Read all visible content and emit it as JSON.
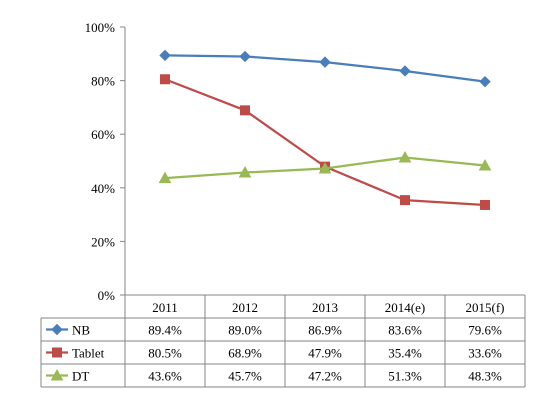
{
  "chart_data": {
    "type": "line",
    "categories": [
      "2011",
      "2012",
      "2013",
      "2014(e)",
      "2015(f)"
    ],
    "ylim": [
      0,
      100
    ],
    "yticks": [
      "0%",
      "20%",
      "40%",
      "60%",
      "80%",
      "100%"
    ],
    "grid": false,
    "legend_placement": "data-table-left",
    "series": [
      {
        "name": "NB",
        "color": "#4a7ebb",
        "marker": "diamond",
        "values": [
          89.4,
          89.0,
          86.9,
          83.6,
          79.6
        ],
        "labels": [
          "89.4%",
          "89.0%",
          "86.9%",
          "83.6%",
          "79.6%"
        ]
      },
      {
        "name": "Tablet",
        "color": "#be4b48",
        "marker": "square",
        "values": [
          80.5,
          68.9,
          47.9,
          35.4,
          33.6
        ],
        "labels": [
          "80.5%",
          "68.9%",
          "47.9%",
          "35.4%",
          "33.6%"
        ]
      },
      {
        "name": "DT",
        "color": "#98b954",
        "marker": "triangle",
        "values": [
          43.6,
          45.7,
          47.2,
          51.3,
          48.3
        ],
        "labels": [
          "43.6%",
          "45.7%",
          "47.2%",
          "51.3%",
          "48.3%"
        ]
      }
    ]
  }
}
